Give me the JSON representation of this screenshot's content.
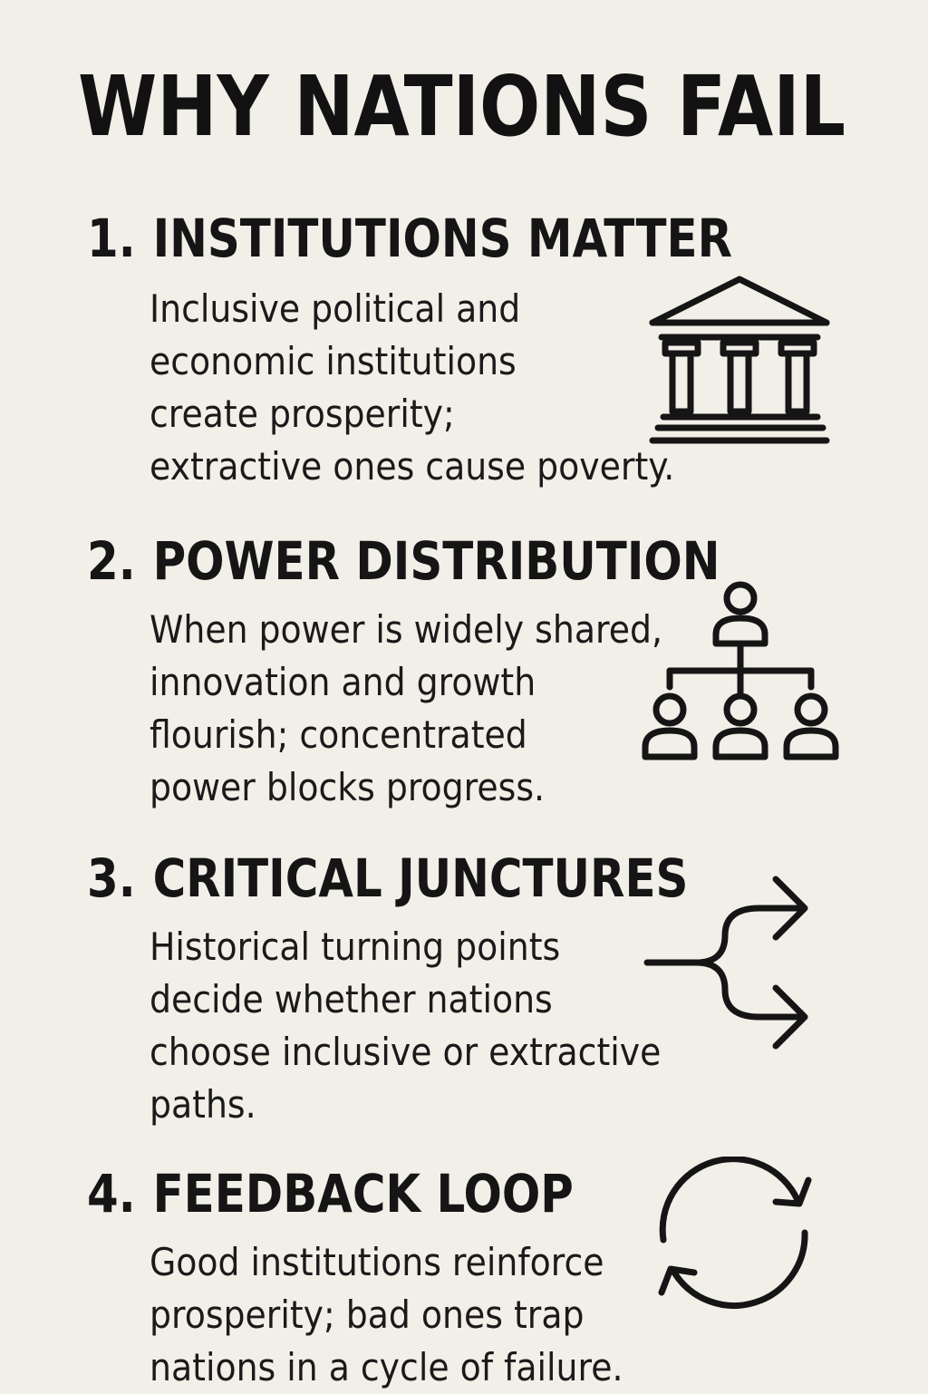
{
  "title": "WHY NATIONS FAIL",
  "sections": [
    {
      "number": "1.",
      "heading": "INSTITUTIONS MATTER",
      "lines": [
        "Inclusive political and",
        "economic institutions",
        "create prosperity;",
        "extractive ones cause poverty."
      ],
      "icon": "institution-building-icon"
    },
    {
      "number": "2.",
      "heading": "POWER DISTRIBUTION",
      "lines": [
        "When power is widely shared,",
        "innovation and growth",
        "flourish; concentrated",
        "power blocks progress."
      ],
      "icon": "hierarchy-people-icon"
    },
    {
      "number": "3.",
      "heading": "CRITICAL JUNCTURES",
      "lines": [
        "Historical turning points",
        "decide whether nations",
        "choose inclusive or extractive",
        "paths."
      ],
      "icon": "branching-arrows-icon"
    },
    {
      "number": "4.",
      "heading": "FEEDBACK LOOP",
      "lines": [
        "Good institutions reinforce",
        "prosperity; bad ones trap",
        "nations in a cycle of failure."
      ],
      "icon": "cycle-arrows-icon"
    }
  ],
  "colors": {
    "background": "#f2efe8",
    "text": "#151515"
  }
}
